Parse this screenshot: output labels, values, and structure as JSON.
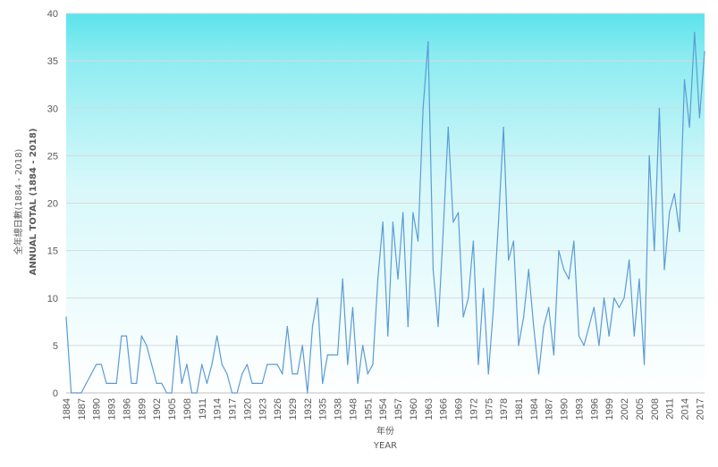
{
  "chart_data": {
    "type": "line",
    "title": "",
    "xlabel": "年份",
    "xlabel_en": "YEAR",
    "ylabel": "全年總日數(1884 - 2018)",
    "ylabel_en": "ANNUAL TOTAL (1884 - 2018)",
    "ylim": [
      0,
      40
    ],
    "yticks": [
      0,
      5,
      10,
      15,
      20,
      25,
      30,
      35,
      40
    ],
    "xtick_labels": [
      "1884",
      "1887",
      "1890",
      "1893",
      "1896",
      "1899",
      "1902",
      "1905",
      "1908",
      "1911",
      "1914",
      "1917",
      "1920",
      "1923",
      "1926",
      "1929",
      "1932",
      "1935",
      "1938",
      "1948",
      "1951",
      "1954",
      "1957",
      "1960",
      "1963",
      "1966",
      "1969",
      "1972",
      "1975",
      "1978",
      "1981",
      "1984",
      "1987",
      "1990",
      "1993",
      "1996",
      "1999",
      "2002",
      "2005",
      "2008",
      "2011",
      "2014",
      "2017"
    ],
    "grid": true,
    "legend": "none",
    "line_color": "#5b9bd5",
    "background_gradient": [
      "#5ce3ec",
      "#ffffff"
    ],
    "values": [
      8,
      0,
      0,
      0,
      1,
      2,
      3,
      3,
      1,
      1,
      1,
      6,
      6,
      1,
      1,
      6,
      5,
      3,
      1,
      1,
      0,
      0,
      6,
      1,
      3,
      0,
      0,
      3,
      1,
      3,
      6,
      3,
      2,
      0,
      0,
      2,
      3,
      1,
      1,
      1,
      3,
      3,
      3,
      2,
      7,
      2,
      2,
      5,
      0,
      7,
      10,
      1,
      4,
      4,
      4,
      12,
      3,
      9,
      1,
      5,
      2,
      3,
      12,
      18,
      6,
      18,
      12,
      19,
      7,
      19,
      16,
      30,
      37,
      13,
      7,
      17,
      28,
      18,
      19,
      8,
      10,
      16,
      3,
      11,
      2,
      9,
      18,
      28,
      14,
      16,
      5,
      8,
      13,
      7,
      2,
      7,
      9,
      4,
      15,
      13,
      12,
      16,
      6,
      5,
      7,
      9,
      5,
      10,
      6,
      10,
      9,
      10,
      14,
      6,
      12,
      3,
      25,
      15,
      30,
      13,
      19,
      21,
      17,
      33,
      28,
      38,
      29,
      36
    ]
  }
}
